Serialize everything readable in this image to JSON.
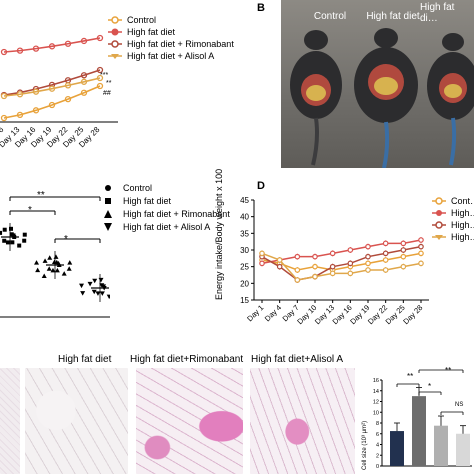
{
  "panelA": {
    "legend": [
      "Control",
      "High fat diet",
      "High fat diet + Rimonabant",
      "High fat diet + Alisol A"
    ],
    "ticks": [
      "6",
      "Day 13",
      "Day 16",
      "Day 19",
      "Day 22",
      "Day 25",
      "Day 28"
    ],
    "star_labels": [
      "***",
      "**",
      "##"
    ]
  },
  "panelB": {
    "letter": "B",
    "headers": [
      "Control",
      "High fat diet",
      "High fat di… +Rimonaba…"
    ]
  },
  "panelC": {
    "legend": [
      "Control",
      "High fat diet",
      "High fat diet + Rimonabant",
      "High fat diet + Alisol A"
    ],
    "sig": [
      "**",
      "*",
      "*"
    ]
  },
  "panelD": {
    "letter": "D",
    "ylabel": "Energy intake/Body weight x 100",
    "legend": [
      "Cont…",
      "High…",
      "High…",
      "High…"
    ],
    "chart_data": {
      "type": "line",
      "x": [
        "Day 1",
        "Day 4",
        "Day 7",
        "Day 10",
        "Day 13",
        "Day 16",
        "Day 19",
        "Day 22",
        "Day 25",
        "Day 28"
      ],
      "ylim": [
        15,
        45
      ],
      "yticks": [
        15,
        20,
        25,
        30,
        35,
        40,
        45
      ],
      "series": [
        {
          "color": "#e8a23a",
          "values": [
            27,
            26,
            24,
            25,
            24,
            25,
            26,
            27,
            28,
            29
          ]
        },
        {
          "color": "#d9534f",
          "values": [
            26,
            27,
            28,
            28,
            29,
            30,
            31,
            32,
            32,
            33
          ]
        },
        {
          "color": "#b04a3a",
          "values": [
            28,
            25,
            21,
            22,
            25,
            26,
            28,
            29,
            30,
            31
          ]
        },
        {
          "color": "#e0a74a",
          "values": [
            29,
            27,
            21,
            22,
            23,
            23,
            24,
            24,
            25,
            26
          ]
        }
      ]
    }
  },
  "panelE": {
    "headers": [
      "High fat diet",
      "High fat diet+Rimonabant",
      "High fat diet+Alisol A"
    ],
    "sig": [
      "**",
      "*",
      "**",
      "NS"
    ],
    "ylabel": "Cell size (10³ μm²)",
    "chart_data": {
      "type": "bar",
      "values": [
        6.5,
        13,
        7.5,
        6
      ],
      "errors": [
        1.5,
        1.6,
        1.8,
        1.5
      ],
      "ylim": [
        0,
        16
      ],
      "yticks": [
        0,
        2,
        4,
        6,
        8,
        10,
        12,
        14,
        16
      ],
      "colors": [
        "#22314f",
        "#6d6d6d",
        "#b0b0b0",
        "#d8d8d8"
      ]
    }
  }
}
